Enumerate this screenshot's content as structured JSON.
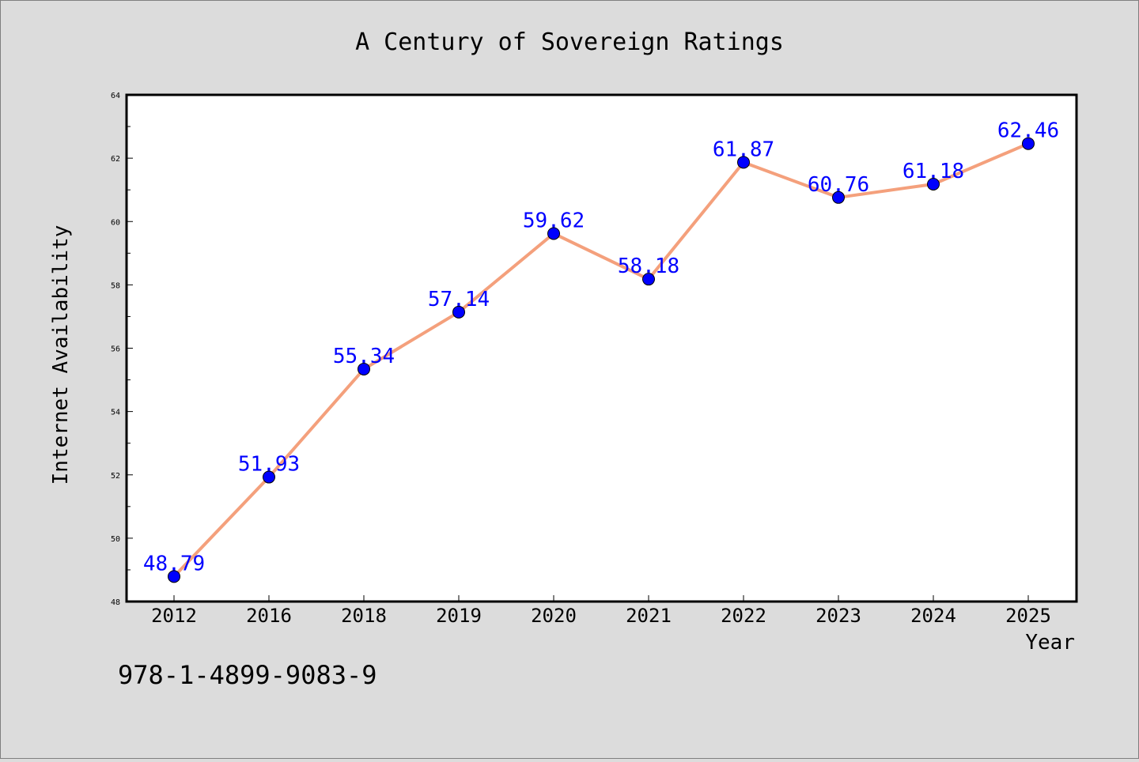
{
  "chart_data": {
    "type": "line",
    "title": "A Century of Sovereign Ratings",
    "xlabel": "Year",
    "ylabel": "Internet Availability",
    "categories": [
      "2012",
      "2016",
      "2018",
      "2019",
      "2020",
      "2021",
      "2022",
      "2023",
      "2024",
      "2025"
    ],
    "values": [
      48.79,
      51.93,
      55.34,
      57.14,
      59.62,
      58.18,
      61.87,
      60.76,
      61.18,
      62.46
    ],
    "data_labels": [
      "48.79",
      "51.93",
      "55.34",
      "57.14",
      "59.62",
      "58.18",
      "61.87",
      "60.76",
      "61.18",
      "62.46"
    ],
    "ylim": [
      48,
      64
    ],
    "yticks": [
      48,
      50,
      52,
      54,
      56,
      58,
      60,
      62,
      64
    ],
    "grid": false,
    "legend": "none",
    "colors": {
      "line": "#f4a07c",
      "marker": "#0000ff",
      "labels": "#0000ff",
      "background": "#dcdcdc",
      "plot_background": "#ffffff"
    }
  },
  "footer": {
    "isbn": "978-1-4899-9083-9"
  }
}
